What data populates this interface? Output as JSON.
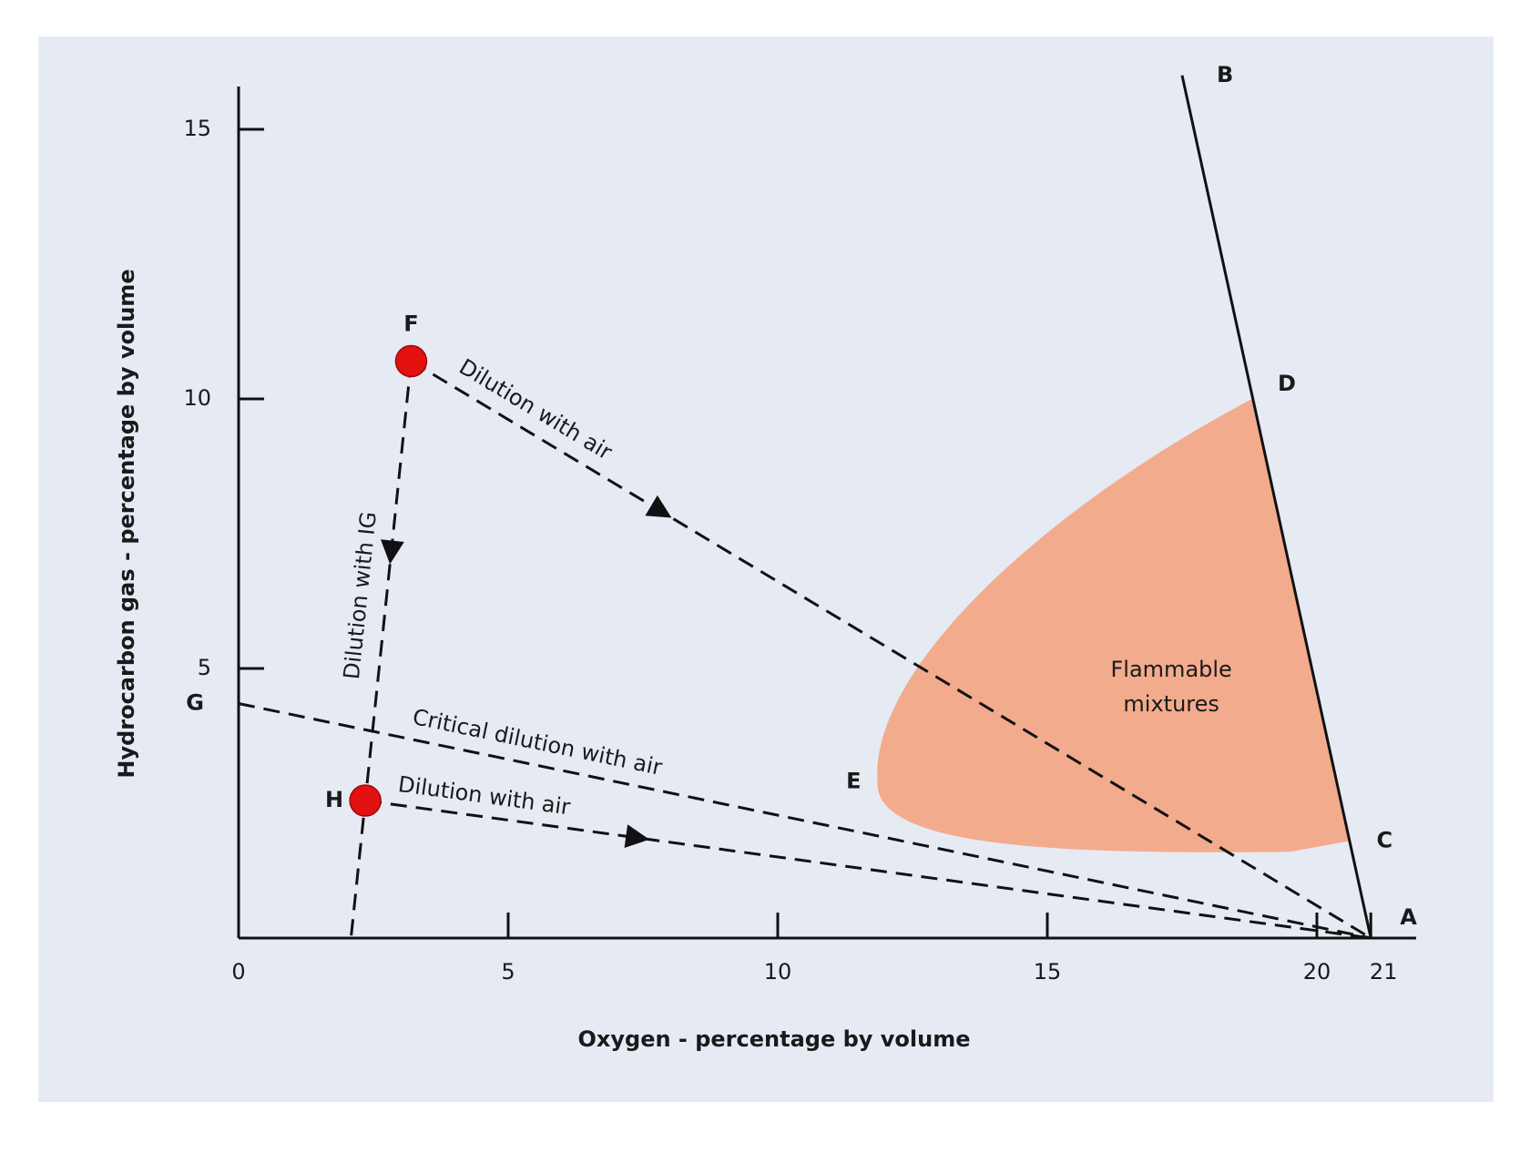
{
  "chart_data": {
    "type": "line",
    "x_label": "Oxygen - percentage by volume",
    "y_label": "Hydrocarbon gas - percentage by volume",
    "xlim": [
      0,
      22
    ],
    "ylim": [
      0,
      16
    ],
    "xticks": [
      0,
      5,
      10,
      15,
      20,
      21
    ],
    "yticks": [
      5,
      10,
      15
    ],
    "points": [
      {
        "label": "F",
        "x": 3.2,
        "y": 10.7
      },
      {
        "label": "H",
        "x": 2.35,
        "y": 2.55
      },
      {
        "label": "G",
        "x": 0,
        "y": 4.35
      },
      {
        "label": "A",
        "x": 21,
        "y": 0
      },
      {
        "label": "B",
        "x": 17.5,
        "y": 16
      },
      {
        "label": "C",
        "x": 20.6,
        "y": 1.8
      },
      {
        "label": "D",
        "x": 18.8,
        "y": 10
      },
      {
        "label": "E",
        "x": 11.85,
        "y": 2.9
      }
    ],
    "region_label": [
      "Flammable",
      "mixtures"
    ],
    "annotations": [
      "Dilution with air",
      "Dilution with IG",
      "Critical dilution with air",
      "Dilution with air"
    ],
    "region_color": "#f3ab8d",
    "point_color": "#e3110f"
  }
}
